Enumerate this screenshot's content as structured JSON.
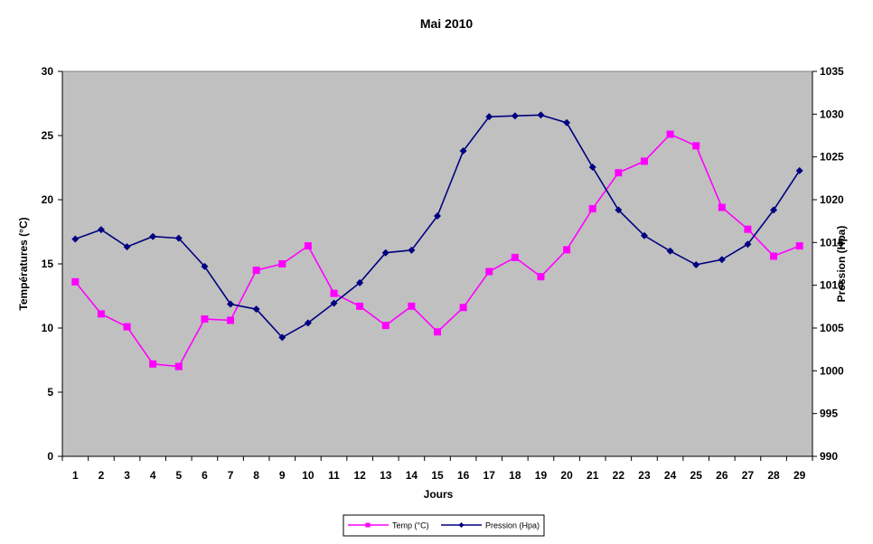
{
  "chart_data": {
    "type": "line",
    "title": "Mai 2010",
    "xlabel": "Jours",
    "ylabel": "Températures (°C)",
    "y2label": "Pression (Hpa)",
    "ylim": [
      0,
      30
    ],
    "y2lim": [
      990,
      1035
    ],
    "yticks": [
      "0",
      "5",
      "10",
      "15",
      "20",
      "25",
      "30"
    ],
    "y2ticks": [
      "990",
      "995",
      "1000",
      "1005",
      "1010",
      "1015",
      "1020",
      "1025",
      "1030",
      "1035"
    ],
    "x": [
      "1",
      "2",
      "3",
      "4",
      "5",
      "6",
      "7",
      "8",
      "9",
      "10",
      "11",
      "12",
      "13",
      "14",
      "15",
      "16",
      "17",
      "18",
      "19",
      "20",
      "21",
      "22",
      "23",
      "24",
      "25",
      "26",
      "27",
      "28",
      "29"
    ],
    "grid": false,
    "legend_position": "bottom",
    "plot_background": "#c0c0c0",
    "series": [
      {
        "name": "Temp (°C)",
        "axis": "left",
        "color": "#ff00ff",
        "marker": "square",
        "values": [
          13.6,
          11.1,
          10.1,
          7.2,
          7.0,
          10.7,
          10.6,
          14.5,
          15.0,
          16.4,
          12.7,
          11.7,
          10.2,
          11.7,
          9.7,
          11.6,
          14.4,
          15.5,
          14.0,
          16.1,
          19.3,
          22.1,
          23.0,
          25.1,
          24.2,
          19.4,
          17.7,
          15.6,
          16.4
        ]
      },
      {
        "name": "Pression (Hpa)",
        "axis": "right",
        "color": "#000080",
        "marker": "diamond",
        "values": [
          1015.4,
          1016.5,
          1014.5,
          1015.7,
          1015.5,
          1012.2,
          1007.8,
          1007.2,
          1003.9,
          1005.6,
          1007.9,
          1010.3,
          1013.8,
          1014.1,
          1018.1,
          1025.7,
          1029.7,
          1029.8,
          1029.9,
          1029.0,
          1023.8,
          1018.8,
          1015.8,
          1014.0,
          1012.4,
          1013.0,
          1014.8,
          1018.8,
          1023.4
        ]
      }
    ]
  }
}
